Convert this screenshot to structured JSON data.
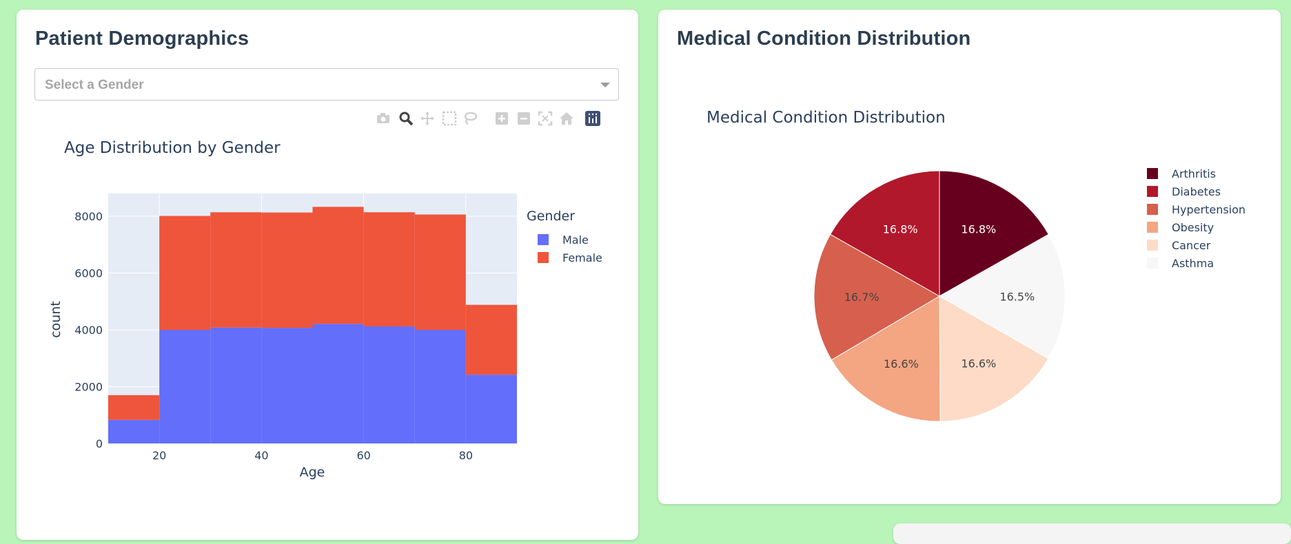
{
  "left_card": {
    "title": "Patient Demographics",
    "dropdown_placeholder": "Select a Gender"
  },
  "modebar_icons": [
    "camera-icon",
    "zoom-icon",
    "pan-icon",
    "box-select-icon",
    "lasso-icon",
    "zoom-in-icon",
    "zoom-out-icon",
    "autoscale-icon",
    "reset-axes-icon",
    "plotly-logo-icon"
  ],
  "right_card": {
    "title": "Medical Condition Distribution"
  },
  "chart_data": [
    {
      "type": "bar",
      "title": "Age Distribution by Gender",
      "xlabel": "Age",
      "ylabel": "count",
      "xlim": [
        10,
        90
      ],
      "ylim": [
        0,
        8800
      ],
      "xticks": [
        20,
        40,
        60,
        80
      ],
      "yticks": [
        0,
        2000,
        4000,
        6000,
        8000
      ],
      "bin_edges": [
        10,
        20,
        30,
        40,
        50,
        60,
        70,
        80,
        90
      ],
      "stacked": true,
      "grid": true,
      "legend": {
        "title": "Gender",
        "placement": "right"
      },
      "series": [
        {
          "name": "Male",
          "color": "#636efa",
          "values": [
            830,
            4000,
            4080,
            4070,
            4210,
            4120,
            4000,
            2420
          ]
        },
        {
          "name": "Female",
          "color": "#ef553b",
          "values": [
            870,
            4010,
            4060,
            4060,
            4120,
            4020,
            4060,
            2460
          ]
        }
      ]
    },
    {
      "type": "pie",
      "title": "Medical Condition Distribution",
      "legend_placement": "right",
      "slices": [
        {
          "label": "Arthritis",
          "value": 16.8,
          "text": "16.8%",
          "color": "#67001f",
          "text_color": "#ffffff"
        },
        {
          "label": "Asthma",
          "value": 16.5,
          "text": "16.5%",
          "color": "#f7f7f7",
          "text_color": "#444444"
        },
        {
          "label": "Cancer",
          "value": 16.6,
          "text": "16.6%",
          "color": "#fddbc7",
          "text_color": "#444444"
        },
        {
          "label": "Obesity",
          "value": 16.6,
          "text": "16.6%",
          "color": "#f4a582",
          "text_color": "#444444"
        },
        {
          "label": "Hypertension",
          "value": 16.7,
          "text": "16.7%",
          "color": "#d6604d",
          "text_color": "#444444"
        },
        {
          "label": "Diabetes",
          "value": 16.8,
          "text": "16.8%",
          "color": "#b2182b",
          "text_color": "#ffffff"
        }
      ],
      "legend_order": [
        "Arthritis",
        "Diabetes",
        "Hypertension",
        "Obesity",
        "Cancer",
        "Asthma"
      ]
    }
  ]
}
